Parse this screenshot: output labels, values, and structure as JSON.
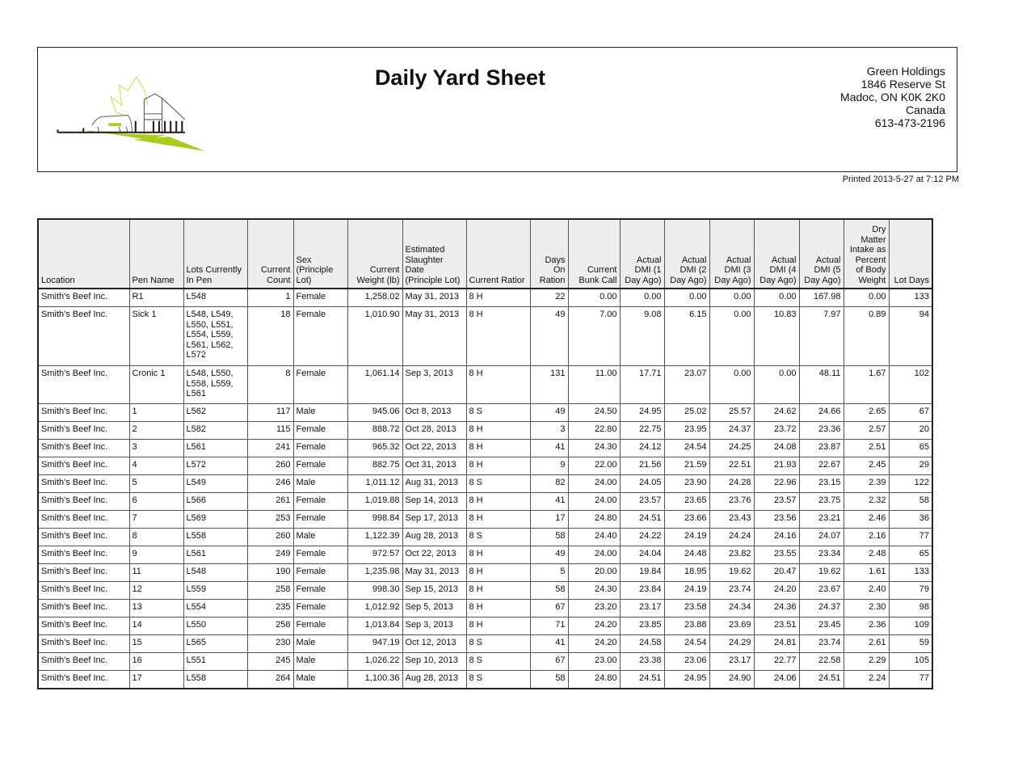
{
  "header": {
    "title": "Daily Yard Sheet",
    "address": [
      "Green Holdings",
      "1846 Reserve St",
      "Madoc, ON  K0K 2K0",
      "Canada",
      "613-473-2196"
    ],
    "printed": "Printed 2013-5-27 at 7:12 PM",
    "logo_colors": {
      "accent": "#a8cc1c",
      "line": "#2a2220"
    }
  },
  "table": {
    "columns": [
      "Location",
      "Pen Name",
      "Lots Currently In Pen",
      "Current Count",
      "Sex (Principle Lot)",
      "Current Weight (lb)",
      "Estimated Slaughter Date (Principle Lot)",
      "Current Ratior",
      "Days On Ration",
      "Current Bunk Call",
      "Actual DMI (1 Day Ago)",
      "Actual DMI (2 Day Ago)",
      "Actual DMI (3 Day Ago)",
      "Actual DMI (4 Day Ago)",
      "Actual DMI (5 Day Ago)",
      "Dry Matter Intake as Percent of Body Weight",
      "Lot Days"
    ],
    "rows": [
      [
        "Smith's Beef Inc.",
        "R1",
        "L548",
        "1",
        "Female",
        "1,258.02",
        "May 31, 2013",
        "8 H",
        "22",
        "0.00",
        "0.00",
        "0.00",
        "0.00",
        "0.00",
        "167.98",
        "0.00",
        "133"
      ],
      [
        "Smith's Beef Inc.",
        "Sick 1",
        "L548, L549, L550, L551, L554, L559, L561, L562, L572",
        "18",
        "Female",
        "1,010.90",
        "May 31, 2013",
        "8 H",
        "49",
        "7.00",
        "9.08",
        "6.15",
        "0.00",
        "10.83",
        "7.97",
        "0.89",
        "94"
      ],
      [
        "Smith's Beef Inc.",
        "Cronic 1",
        "L548, L550, L558, L559, L561",
        "8",
        "Female",
        "1,061.14",
        "Sep 3, 2013",
        "8 H",
        "131",
        "11.00",
        "17.71",
        "23.07",
        "0.00",
        "0.00",
        "48.11",
        "1.67",
        "102"
      ],
      [
        "Smith's Beef Inc.",
        "1",
        "L562",
        "117",
        "Male",
        "945.06",
        "Oct 8, 2013",
        "8 S",
        "49",
        "24.50",
        "24.95",
        "25.02",
        "25.57",
        "24.62",
        "24.66",
        "2.65",
        "67"
      ],
      [
        "Smith's Beef Inc.",
        "2",
        "L582",
        "115",
        "Female",
        "888.72",
        "Oct 28, 2013",
        "8 H",
        "3",
        "22.80",
        "22.75",
        "23.95",
        "24.37",
        "23.72",
        "23.36",
        "2.57",
        "20"
      ],
      [
        "Smith's Beef Inc.",
        "3",
        "L561",
        "241",
        "Female",
        "965.32",
        "Oct 22, 2013",
        "8 H",
        "41",
        "24.30",
        "24.12",
        "24.54",
        "24.25",
        "24.08",
        "23.87",
        "2.51",
        "65"
      ],
      [
        "Smith's Beef Inc.",
        "4",
        "L572",
        "260",
        "Female",
        "882.75",
        "Oct 31, 2013",
        "8 H",
        "9",
        "22.00",
        "21.56",
        "21.59",
        "22.51",
        "21.93",
        "22.67",
        "2.45",
        "29"
      ],
      [
        "Smith's Beef Inc.",
        "5",
        "L549",
        "246",
        "Male",
        "1,011.12",
        "Aug 31, 2013",
        "8 S",
        "82",
        "24.00",
        "24.05",
        "23.90",
        "24.28",
        "22.96",
        "23.15",
        "2.39",
        "122"
      ],
      [
        "Smith's Beef Inc.",
        "6",
        "L566",
        "261",
        "Female",
        "1,019.88",
        "Sep 14, 2013",
        "8 H",
        "41",
        "24.00",
        "23.57",
        "23.65",
        "23.76",
        "23.57",
        "23.75",
        "2.32",
        "58"
      ],
      [
        "Smith's Beef Inc.",
        "7",
        "L569",
        "253",
        "Female",
        "998.84",
        "Sep 17, 2013",
        "8 H",
        "17",
        "24.80",
        "24.51",
        "23.66",
        "23.43",
        "23.56",
        "23.21",
        "2.46",
        "36"
      ],
      [
        "Smith's Beef Inc.",
        "8",
        "L558",
        "260",
        "Male",
        "1,122.39",
        "Aug 28, 2013",
        "8 S",
        "58",
        "24.40",
        "24.22",
        "24.19",
        "24.24",
        "24.16",
        "24.07",
        "2.16",
        "77"
      ],
      [
        "Smith's Beef Inc.",
        "9",
        "L561",
        "249",
        "Female",
        "972.57",
        "Oct 22, 2013",
        "8 H",
        "49",
        "24.00",
        "24.04",
        "24.48",
        "23.82",
        "23.55",
        "23.34",
        "2.48",
        "65"
      ],
      [
        "Smith's Beef Inc.",
        "11",
        "L548",
        "190",
        "Female",
        "1,235.98",
        "May 31, 2013",
        "8 H",
        "5",
        "20.00",
        "19.84",
        "18.95",
        "19.62",
        "20.47",
        "19.62",
        "1.61",
        "133"
      ],
      [
        "Smith's Beef Inc.",
        "12",
        "L559",
        "258",
        "Female",
        "998.30",
        "Sep 15, 2013",
        "8 H",
        "58",
        "24.30",
        "23.84",
        "24.19",
        "23.74",
        "24.20",
        "23.67",
        "2.40",
        "79"
      ],
      [
        "Smith's Beef Inc.",
        "13",
        "L554",
        "235",
        "Female",
        "1,012.92",
        "Sep 5, 2013",
        "8 H",
        "67",
        "23.20",
        "23.17",
        "23.58",
        "24.34",
        "24.36",
        "24.37",
        "2.30",
        "98"
      ],
      [
        "Smith's Beef Inc.",
        "14",
        "L550",
        "258",
        "Female",
        "1,013.84",
        "Sep 3, 2013",
        "8 H",
        "71",
        "24.20",
        "23.85",
        "23.88",
        "23.69",
        "23.51",
        "23.45",
        "2.36",
        "109"
      ],
      [
        "Smith's Beef Inc.",
        "15",
        "L565",
        "230",
        "Male",
        "947.19",
        "Oct 12, 2013",
        "8 S",
        "41",
        "24.20",
        "24.58",
        "24.54",
        "24.29",
        "24.81",
        "23.74",
        "2.61",
        "59"
      ],
      [
        "Smith's Beef Inc.",
        "16",
        "L551",
        "245",
        "Male",
        "1,026.22",
        "Sep 10, 2013",
        "8 S",
        "67",
        "23.00",
        "23.38",
        "23.06",
        "23.17",
        "22.77",
        "22.58",
        "2.29",
        "105"
      ],
      [
        "Smith's Beef Inc.",
        "17",
        "L558",
        "264",
        "Male",
        "1,100.36",
        "Aug 28, 2013",
        "8 S",
        "58",
        "24.80",
        "24.51",
        "24.95",
        "24.90",
        "24.06",
        "24.51",
        "2.24",
        "77"
      ]
    ]
  }
}
